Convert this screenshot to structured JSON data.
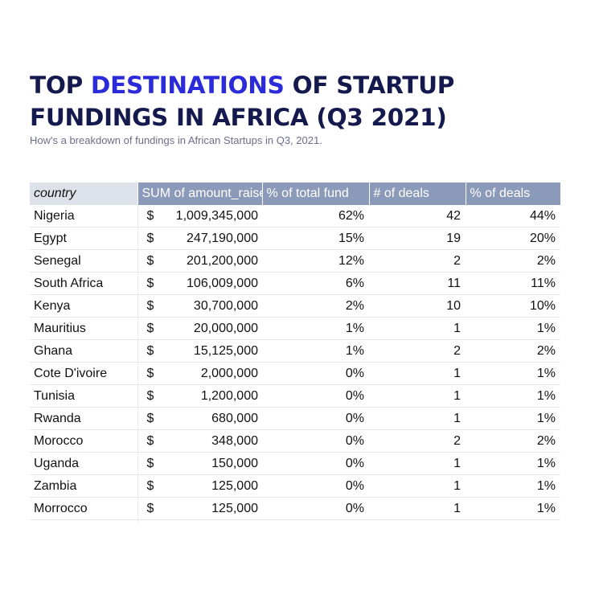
{
  "header": {
    "title_part1": "TOP ",
    "title_accent": "DESTINATIONS",
    "title_part2": " OF STARTUP FUNDINGS IN AFRICA (Q3 2021)",
    "subtitle": "How's a breakdown of fundings in African Startups in Q3, 2021."
  },
  "colors": {
    "title": "#151a4e",
    "accent": "#2b2bd9",
    "header_bg": "#8a9ab8",
    "country_header_bg": "#dde2ea"
  },
  "chart_data": {
    "type": "table",
    "columns": [
      "country",
      "SUM of amount_raised",
      "% of total fund",
      "# of deals",
      "% of deals"
    ],
    "currency_symbol": "$",
    "rows": [
      {
        "country": "Nigeria",
        "amount": "1,009,345,000",
        "pct_fund": "62%",
        "deals": "42",
        "pct_deals": "44%"
      },
      {
        "country": "Egypt",
        "amount": "247,190,000",
        "pct_fund": "15%",
        "deals": "19",
        "pct_deals": "20%"
      },
      {
        "country": "Senegal",
        "amount": "201,200,000",
        "pct_fund": "12%",
        "deals": "2",
        "pct_deals": "2%"
      },
      {
        "country": "South Africa",
        "amount": "106,009,000",
        "pct_fund": "6%",
        "deals": "11",
        "pct_deals": "11%"
      },
      {
        "country": "Kenya",
        "amount": "30,700,000",
        "pct_fund": "2%",
        "deals": "10",
        "pct_deals": "10%"
      },
      {
        "country": "Mauritius",
        "amount": "20,000,000",
        "pct_fund": "1%",
        "deals": "1",
        "pct_deals": "1%"
      },
      {
        "country": "Ghana",
        "amount": "15,125,000",
        "pct_fund": "1%",
        "deals": "2",
        "pct_deals": "2%"
      },
      {
        "country": "Cote D'ivoire",
        "amount": "2,000,000",
        "pct_fund": "0%",
        "deals": "1",
        "pct_deals": "1%"
      },
      {
        "country": "Tunisia",
        "amount": "1,200,000",
        "pct_fund": "0%",
        "deals": "1",
        "pct_deals": "1%"
      },
      {
        "country": "Rwanda",
        "amount": "680,000",
        "pct_fund": "0%",
        "deals": "1",
        "pct_deals": "1%"
      },
      {
        "country": "Morocco",
        "amount": "348,000",
        "pct_fund": "0%",
        "deals": "2",
        "pct_deals": "2%"
      },
      {
        "country": "Uganda",
        "amount": "150,000",
        "pct_fund": "0%",
        "deals": "1",
        "pct_deals": "1%"
      },
      {
        "country": "Zambia",
        "amount": "125,000",
        "pct_fund": "0%",
        "deals": "1",
        "pct_deals": "1%"
      },
      {
        "country": "Morrocco",
        "amount": "125,000",
        "pct_fund": "0%",
        "deals": "1",
        "pct_deals": "1%"
      }
    ]
  }
}
